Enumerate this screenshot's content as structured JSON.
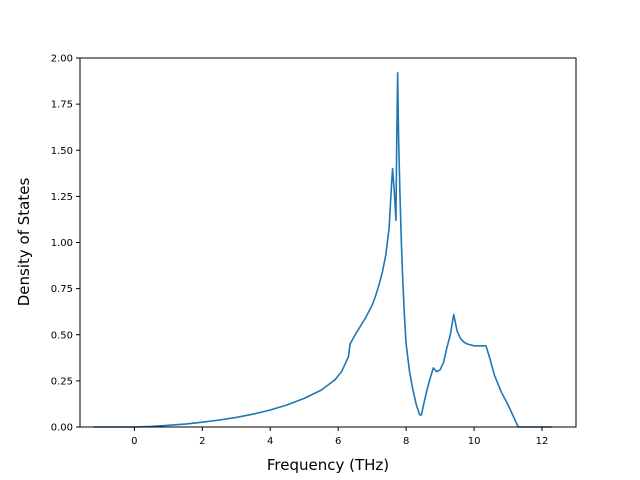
{
  "chart_data": {
    "type": "line",
    "title": "",
    "xlabel": "Frequency (THz)",
    "ylabel": "Density of States",
    "xlim": [
      -1.6,
      13.0
    ],
    "ylim": [
      0.0,
      2.0
    ],
    "grid": false,
    "legend": "none",
    "line_color": "#1f77b4",
    "x_ticks": [
      0,
      2,
      4,
      6,
      8,
      10,
      12
    ],
    "x_tick_labels": [
      "0",
      "2",
      "4",
      "6",
      "8",
      "10",
      "12"
    ],
    "y_ticks": [
      0,
      0.25,
      0.5,
      0.75,
      1.0,
      1.25,
      1.5,
      1.75,
      2.0
    ],
    "y_tick_labels": [
      "0.00",
      "0.25",
      "0.50",
      "0.75",
      "1.00",
      "1.25",
      "1.50",
      "1.75",
      "2.00"
    ],
    "series": [
      {
        "x": [
          -1.2,
          0.0,
          0.5,
          1.0,
          1.5,
          2.0,
          2.5,
          3.0,
          3.5,
          4.0,
          4.5,
          5.0,
          5.5,
          5.9,
          6.1,
          6.3,
          6.35,
          6.5,
          6.6,
          6.8,
          7.0,
          7.1,
          7.2,
          7.3,
          7.4,
          7.5,
          7.55,
          7.6,
          7.65,
          7.7,
          7.72,
          7.75,
          7.78,
          7.82,
          7.86,
          7.9,
          7.95,
          8.0,
          8.1,
          8.2,
          8.3,
          8.4,
          8.45,
          8.5,
          8.6,
          8.7,
          8.8,
          8.9,
          9.0,
          9.1,
          9.2,
          9.3,
          9.4,
          9.5,
          9.6,
          9.7,
          9.8,
          10.0,
          10.2,
          10.35,
          10.45,
          10.6,
          10.8,
          11.0,
          11.1,
          11.2,
          11.3,
          11.8,
          12.3
        ],
        "values": [
          0.0,
          0.0,
          0.003,
          0.009,
          0.016,
          0.026,
          0.038,
          0.052,
          0.07,
          0.092,
          0.12,
          0.155,
          0.2,
          0.255,
          0.3,
          0.38,
          0.45,
          0.5,
          0.53,
          0.59,
          0.66,
          0.71,
          0.77,
          0.84,
          0.93,
          1.08,
          1.25,
          1.4,
          1.28,
          1.12,
          1.5,
          1.92,
          1.55,
          1.25,
          1.0,
          0.8,
          0.6,
          0.45,
          0.3,
          0.2,
          0.12,
          0.065,
          0.065,
          0.11,
          0.19,
          0.26,
          0.32,
          0.3,
          0.31,
          0.35,
          0.43,
          0.5,
          0.61,
          0.52,
          0.48,
          0.46,
          0.45,
          0.44,
          0.44,
          0.44,
          0.38,
          0.28,
          0.19,
          0.12,
          0.08,
          0.04,
          0.0,
          0.0,
          0.0
        ]
      }
    ]
  }
}
